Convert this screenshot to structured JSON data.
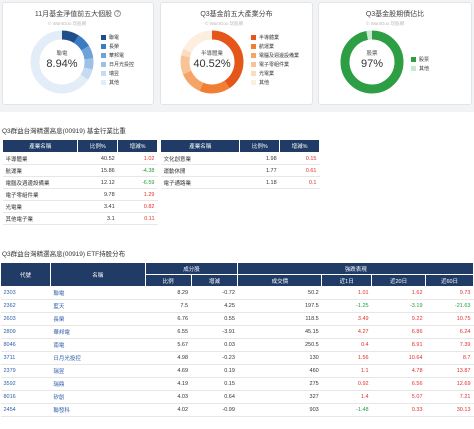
{
  "cards": [
    {
      "title": "11月基金淨值前五大個股",
      "help_icon": "?",
      "watermark": "© WantGoo 玩股網",
      "center_label": "聯電",
      "center_value": "8.94%",
      "legend": [
        {
          "label": "聯電",
          "color": "#1f4e8a"
        },
        {
          "label": "長榮",
          "color": "#3a7cc4"
        },
        {
          "label": "華邦電",
          "color": "#6ea3d8"
        },
        {
          "label": "日月光投控",
          "color": "#9cc0e6"
        },
        {
          "label": "瑞昱",
          "color": "#c6daf1"
        },
        {
          "label": "其他",
          "color": "#e3edf8"
        }
      ]
    },
    {
      "title": "Q3基金前五大產業分布",
      "watermark": "© WantGoo 玩股網",
      "center_label": "半導體業",
      "center_value": "40.52%",
      "legend": [
        {
          "label": "半導體業",
          "color": "#e5561b"
        },
        {
          "label": "航運業",
          "color": "#f07f33"
        },
        {
          "label": "電腦及週邊設備業",
          "color": "#f5a467"
        },
        {
          "label": "電子零組件業",
          "color": "#f8c396"
        },
        {
          "label": "光電業",
          "color": "#fbdcc1"
        },
        {
          "label": "其他",
          "color": "#fdeee0"
        }
      ]
    },
    {
      "title": "Q3基金股期債佔比",
      "watermark": "© WantGoo 玩股網",
      "center_label": "股票",
      "center_value": "97%",
      "legend": [
        {
          "label": "股票",
          "color": "#2e9e44"
        },
        {
          "label": "其他",
          "color": "#c9e9cc"
        }
      ]
    }
  ],
  "donut_slices": [
    [
      8.94,
      7.5,
      6.6,
      5.8,
      5.6,
      65.56
    ],
    [
      40.52,
      15.86,
      12.12,
      9.78,
      3.41,
      18.31
    ],
    [
      97,
      3
    ]
  ],
  "industry_section": {
    "title": "Q3群益台灣精選高息(00919) 基金行業比重",
    "headers": [
      "產業名稱",
      "比例%",
      "增減%"
    ],
    "left_rows": [
      {
        "name": "半導體業",
        "ratio": "40.52",
        "change": "1.02"
      },
      {
        "name": "航運業",
        "ratio": "15.86",
        "change": "-4.38"
      },
      {
        "name": "電腦及週邊設備業",
        "ratio": "12.12",
        "change": "-6.59"
      },
      {
        "name": "電子零組件業",
        "ratio": "9.78",
        "change": "1.29"
      },
      {
        "name": "光電業",
        "ratio": "3.41",
        "change": "0.82"
      },
      {
        "name": "其他電子業",
        "ratio": "3.1",
        "change": "0.11"
      }
    ],
    "right_rows": [
      {
        "name": "文化創意業",
        "ratio": "1.98",
        "change": "0.15"
      },
      {
        "name": "運動休閒",
        "ratio": "1.77",
        "change": "0.61"
      },
      {
        "name": "電子通路業",
        "ratio": "1.18",
        "change": "0.1"
      }
    ]
  },
  "holdings_section": {
    "title": "Q3群益台灣精選高息(00919) ETF持股分布",
    "group_headers": {
      "code": "代號",
      "name": "名稱",
      "holding": "成分股",
      "perf": "強跌表現"
    },
    "sub_headers": [
      "比例",
      "增減",
      "成交價",
      "近1日",
      "近20日",
      "近60日"
    ],
    "rows": [
      {
        "code": "2303",
        "name": "聯電",
        "ratio": "8.29",
        "change": "-0.72",
        "price": "50.2",
        "d1": "1.01",
        "d20": "1.62",
        "d60": "9.73"
      },
      {
        "code": "2362",
        "name": "藍天",
        "ratio": "7.5",
        "change": "4.25",
        "price": "197.5",
        "d1": "-1.25",
        "d20": "-3.19",
        "d60": "-21.63"
      },
      {
        "code": "2603",
        "name": "長榮",
        "ratio": "6.76",
        "change": "0.55",
        "price": "118.5",
        "d1": "3.49",
        "d20": "9.22",
        "d60": "10.75"
      },
      {
        "code": "2809",
        "name": "華邦電",
        "ratio": "6.55",
        "change": "-3.91",
        "price": "45.15",
        "d1": "4.27",
        "d20": "6.86",
        "d60": "6.24"
      },
      {
        "code": "8046",
        "name": "南電",
        "ratio": "5.67",
        "change": "0.03",
        "price": "250.5",
        "d1": "0.4",
        "d20": "8.91",
        "d60": "7.39"
      },
      {
        "code": "3711",
        "name": "日月光投控",
        "ratio": "4.98",
        "change": "-0.23",
        "price": "130",
        "d1": "1.56",
        "d20": "10.64",
        "d60": "8.7"
      },
      {
        "code": "2379",
        "name": "瑞昱",
        "ratio": "4.69",
        "change": "0.19",
        "price": "460",
        "d1": "1.1",
        "d20": "4.78",
        "d60": "13.87"
      },
      {
        "code": "3592",
        "name": "瑞鼎",
        "ratio": "4.19",
        "change": "0.15",
        "price": "275",
        "d1": "0.92",
        "d20": "6.56",
        "d60": "12.69"
      },
      {
        "code": "8016",
        "name": "矽創",
        "ratio": "4.03",
        "change": "0.64",
        "price": "327",
        "d1": "1.4",
        "d20": "5.07",
        "d60": "7.21"
      },
      {
        "code": "2454",
        "name": "聯發科",
        "ratio": "4.02",
        "change": "-0.99",
        "price": "903",
        "d1": "-1.48",
        "d20": "0.33",
        "d60": "30.13"
      }
    ]
  }
}
